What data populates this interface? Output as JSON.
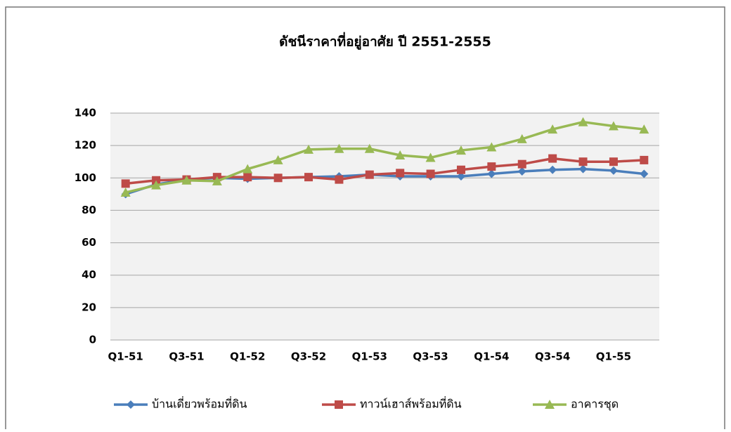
{
  "chart_data": {
    "type": "line",
    "title": "ดัชนีราคาที่อยู่อาศัย ปี 2551-2555",
    "categories": [
      "Q1-51",
      null,
      "Q3-51",
      null,
      "Q1-52",
      null,
      "Q3-52",
      null,
      "Q1-53",
      null,
      "Q3-53",
      null,
      "Q1-54",
      null,
      "Q3-54",
      null,
      "Q1-55",
      null
    ],
    "series": [
      {
        "name": "บ้านเดี่ยวพร้อมที่ดิน",
        "color": "#4a7ebb",
        "marker": "diamond",
        "values": [
          90,
          96,
          99,
          100,
          99.5,
          100,
          100.5,
          101,
          102,
          101,
          101,
          101,
          102.5,
          104,
          105,
          105.5,
          104.5,
          102.5
        ]
      },
      {
        "name": "ทาวน์เฮาส์พร้อมที่ดิน",
        "color": "#be4b48",
        "marker": "square",
        "values": [
          96.5,
          98.5,
          99,
          100.5,
          100.5,
          100,
          100.5,
          99,
          102,
          103,
          102.5,
          105,
          107,
          108.5,
          112,
          110,
          110,
          111
        ]
      },
      {
        "name": "อาคารชุด",
        "color": "#98b954",
        "marker": "triangle",
        "values": [
          91,
          95.5,
          98.5,
          98,
          105.5,
          111,
          117.5,
          118,
          118,
          114,
          112.5,
          117,
          119,
          124,
          130,
          134.5,
          132,
          130
        ]
      }
    ],
    "ylim": [
      0,
      140
    ],
    "yticks": [
      0,
      20,
      40,
      60,
      80,
      100,
      120,
      140
    ],
    "grid": true,
    "legend": "bottom"
  }
}
